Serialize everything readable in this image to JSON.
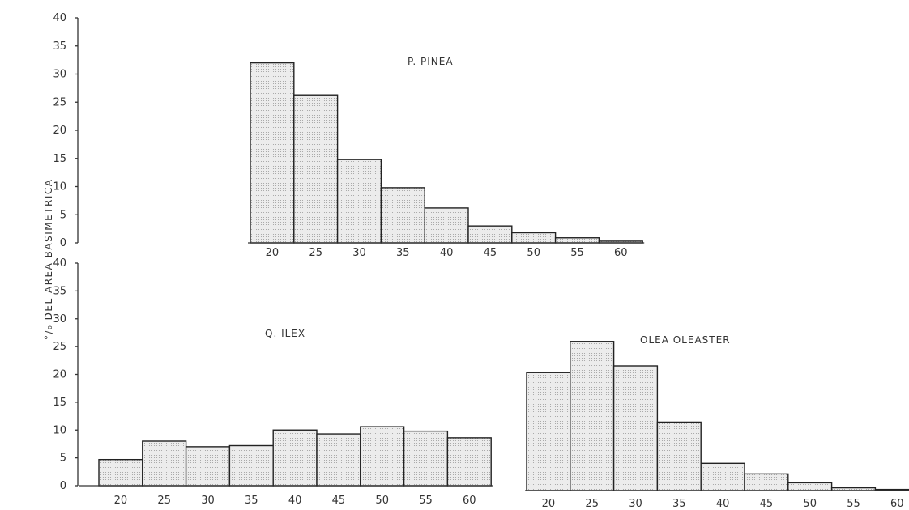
{
  "y_axis_label": "°/₀ DEL  AREA    BASIMETRICA",
  "colors": {
    "bar_fill": "#e6e6e6",
    "bar_stroke": "#222222",
    "axis": "#333333"
  },
  "chart_data": [
    {
      "type": "bar",
      "title": "P. PINEA",
      "categories": [
        "20",
        "25",
        "30",
        "35",
        "40",
        "45",
        "50",
        "55",
        "60"
      ],
      "values": [
        32,
        26.3,
        14.8,
        9.8,
        6.2,
        3.0,
        1.8,
        0.9,
        0.3
      ],
      "ylim": [
        0,
        40
      ],
      "yticks": [
        0,
        5,
        10,
        15,
        20,
        25,
        30,
        35,
        40
      ]
    },
    {
      "type": "bar",
      "title": "Q. ILEX",
      "categories": [
        "20",
        "25",
        "30",
        "35",
        "40",
        "45",
        "50",
        "55",
        "60"
      ],
      "values": [
        4.7,
        8.0,
        7.0,
        7.2,
        10.0,
        9.3,
        10.6,
        9.8,
        8.6
      ],
      "ylim": [
        0,
        40
      ],
      "yticks": [
        0,
        5,
        10,
        15,
        20,
        25,
        30,
        35,
        40
      ]
    },
    {
      "type": "bar",
      "title": "OLEA   OLEASTER",
      "categories": [
        "20",
        "25",
        "30",
        "35",
        "40",
        "45",
        "50",
        "55",
        "60"
      ],
      "values": [
        21.2,
        26.8,
        22.4,
        12.3,
        4.9,
        3.0,
        1.4,
        0.5,
        0.2
      ],
      "ylim": [
        0,
        40
      ],
      "yticks": []
    }
  ]
}
